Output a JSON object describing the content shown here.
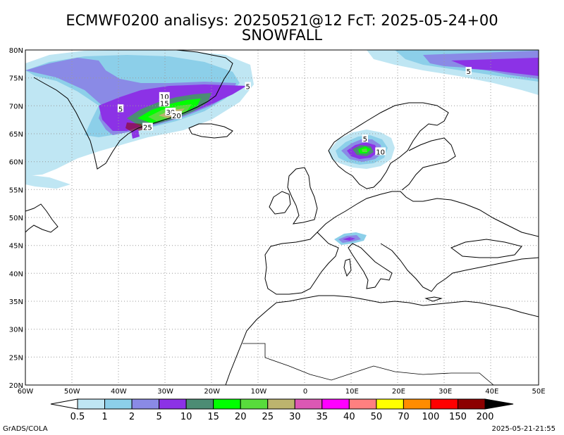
{
  "title_line1": "ECMWF0200 analisys: 20250521@12 FcT: 2025-05-24+00",
  "title_line2": "SNOWFALL",
  "map": {
    "lon_range": [
      -60,
      50
    ],
    "lat_range": [
      20,
      80
    ],
    "lon_tick_labels": [
      "60W",
      "50W",
      "40W",
      "30W",
      "20W",
      "10W",
      "0",
      "10E",
      "20E",
      "30E",
      "40E",
      "50E"
    ],
    "lat_tick_labels": [
      "20N",
      "25N",
      "30N",
      "35N",
      "40N",
      "45N",
      "50N",
      "55N",
      "60N",
      "65N",
      "70N",
      "75N",
      "80N"
    ],
    "grid": "dotted",
    "contour_labels": [
      {
        "text": "5",
        "lon": 35,
        "lat": 76.2
      },
      {
        "text": "5",
        "lon": -12.3,
        "lat": 73.5
      },
      {
        "text": "5",
        "lon": -39.6,
        "lat": 69.5
      },
      {
        "text": "10",
        "lon": -30.2,
        "lat": 71.7
      },
      {
        "text": "15",
        "lon": -30.2,
        "lat": 70.5
      },
      {
        "text": "30",
        "lon": -28.9,
        "lat": 68.9
      },
      {
        "text": "20",
        "lon": -27.6,
        "lat": 68.3
      },
      {
        "text": "25",
        "lon": -33.8,
        "lat": 66.2
      },
      {
        "text": "5",
        "lon": 12.8,
        "lat": 64.1
      },
      {
        "text": "10",
        "lon": 16.1,
        "lat": 61.8
      }
    ]
  },
  "colorbar": {
    "labels": [
      "0.5",
      "1",
      "2",
      "5",
      "10",
      "15",
      "20",
      "25",
      "30",
      "35",
      "40",
      "50",
      "70",
      "100",
      "150",
      "200"
    ],
    "colors": [
      "#bfe6f3",
      "#8ccfe9",
      "#8a8ae6",
      "#8c32e6",
      "#4c8c74",
      "#00ff00",
      "#58dc3c",
      "#bcb46e",
      "#dc58b4",
      "#ff00ff",
      "#ff8080",
      "#ffff00",
      "#ff8c00",
      "#ff0000",
      "#8c0000"
    ],
    "end_left": "#ffffff",
    "end_right": "#000000"
  },
  "footer": {
    "left": "GrADS/COLA",
    "right": "2025-05-21-21:55"
  }
}
